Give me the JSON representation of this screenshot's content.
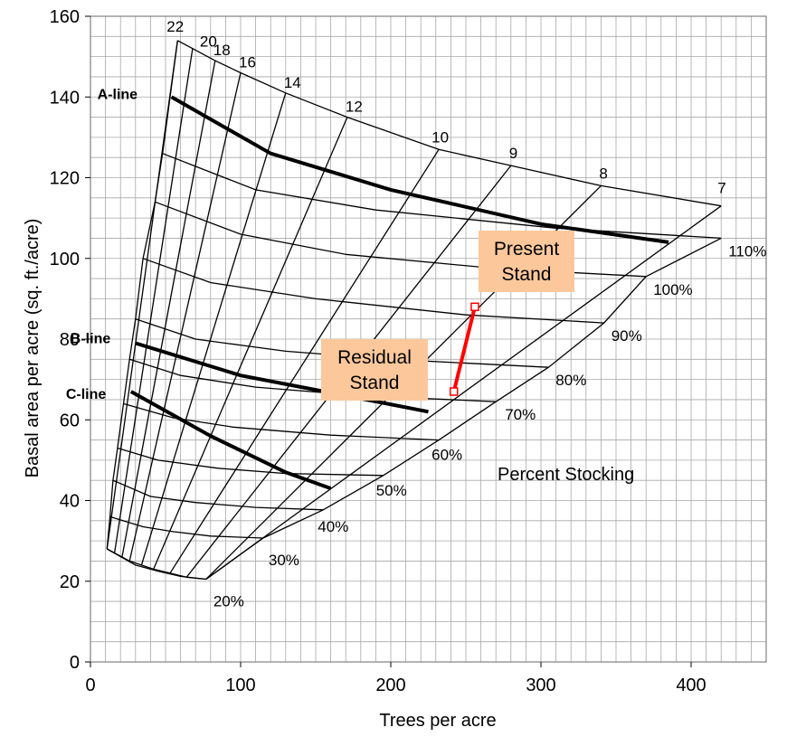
{
  "chart_data": {
    "type": "line",
    "xlabel": "Trees per acre",
    "ylabel": "Basal area per acre (sq. ft./acre)",
    "xlim": [
      0,
      450
    ],
    "ylim": [
      0,
      160
    ],
    "xticks": [
      "0",
      "100",
      "200",
      "300",
      "400"
    ],
    "yticks": [
      "0",
      "20",
      "40",
      "60",
      "80",
      "100",
      "120",
      "140",
      "160"
    ],
    "grid": true,
    "stocking_lines": [
      {
        "label": "20%",
        "points": [
          [
            11,
            28
          ],
          [
            30,
            24
          ],
          [
            45,
            22.5
          ],
          [
            60,
            21.2
          ],
          [
            77,
            20.5
          ]
        ]
      },
      {
        "label": "30%",
        "points": [
          [
            13,
            36
          ],
          [
            35,
            33.5
          ],
          [
            55,
            32.3
          ],
          [
            80,
            31.2
          ],
          [
            115,
            30.7
          ]
        ]
      },
      {
        "label": "40%",
        "points": [
          [
            15,
            45
          ],
          [
            40,
            41
          ],
          [
            70,
            39.5
          ],
          [
            110,
            38.3
          ],
          [
            155,
            37.7
          ]
        ]
      },
      {
        "label": "50%",
        "points": [
          [
            18,
            53
          ],
          [
            45,
            50
          ],
          [
            85,
            48
          ],
          [
            130,
            46.7
          ],
          [
            195,
            46.2
          ]
        ]
      },
      {
        "label": "60%",
        "points": [
          [
            22,
            64
          ],
          [
            55,
            60.5
          ],
          [
            95,
            58.2
          ],
          [
            160,
            56.2
          ],
          [
            232,
            55
          ]
        ]
      },
      {
        "label": "70%",
        "points": [
          [
            26,
            75
          ],
          [
            60,
            71
          ],
          [
            110,
            68.1
          ],
          [
            180,
            66
          ],
          [
            270,
            64.5
          ]
        ]
      },
      {
        "label": "80%",
        "points": [
          [
            30,
            85
          ],
          [
            70,
            80
          ],
          [
            130,
            77
          ],
          [
            200,
            75
          ],
          [
            305,
            73
          ]
        ]
      },
      {
        "label": "90%",
        "points": [
          [
            35,
            100
          ],
          [
            80,
            94
          ],
          [
            150,
            90
          ],
          [
            250,
            86
          ],
          [
            342,
            84
          ]
        ]
      },
      {
        "label": "100%",
        "points": [
          [
            43,
            114
          ],
          [
            100,
            106
          ],
          [
            170,
            101
          ],
          [
            270,
            97.5
          ],
          [
            370,
            95.5
          ]
        ]
      },
      {
        "label": "110%",
        "points": [
          [
            48,
            126
          ],
          [
            110,
            117
          ],
          [
            190,
            112
          ],
          [
            310,
            107.5
          ],
          [
            420,
            105
          ]
        ]
      }
    ],
    "diameter_lines": [
      {
        "label": "22",
        "points": [
          [
            11,
            28
          ],
          [
            58,
            154
          ]
        ]
      },
      {
        "label": "20",
        "points": [
          [
            16,
            27
          ],
          [
            68,
            152
          ]
        ]
      },
      {
        "label": "18",
        "points": [
          [
            21,
            26
          ],
          [
            83,
            149
          ]
        ]
      },
      {
        "label": "16",
        "points": [
          [
            26,
            25
          ],
          [
            100,
            146
          ]
        ]
      },
      {
        "label": "14",
        "points": [
          [
            34,
            24
          ],
          [
            130,
            141
          ]
        ]
      },
      {
        "label": "12",
        "points": [
          [
            42,
            23
          ],
          [
            171,
            135
          ]
        ]
      },
      {
        "label": "10",
        "points": [
          [
            53,
            22
          ],
          [
            232,
            127
          ]
        ]
      },
      {
        "label": "9",
        "points": [
          [
            64,
            21
          ],
          [
            280,
            123
          ]
        ]
      },
      {
        "label": "8",
        "points": [
          [
            77,
            20.5
          ],
          [
            340,
            118
          ]
        ]
      },
      {
        "label": "7",
        "points": [
          [
            77,
            20.5
          ],
          [
            420,
            113
          ]
        ]
      }
    ],
    "reference_lines": [
      {
        "label": "A-line",
        "points": [
          [
            54,
            140
          ],
          [
            120,
            126
          ],
          [
            200,
            117
          ],
          [
            300,
            108.5
          ],
          [
            385,
            104
          ]
        ]
      },
      {
        "label": "B-line",
        "points": [
          [
            30,
            79
          ],
          [
            100,
            71
          ],
          [
            170,
            66
          ],
          [
            225,
            62
          ]
        ]
      },
      {
        "label": "C-line",
        "points": [
          [
            27,
            67
          ],
          [
            80,
            56
          ],
          [
            130,
            47
          ],
          [
            160,
            43
          ]
        ]
      }
    ],
    "thinning": {
      "present": [
        256,
        88
      ],
      "residual": [
        242,
        67
      ]
    },
    "annotations": {
      "present_stand": "Present Stand",
      "residual_stand": "Residual Stand",
      "percent_stocking": "Percent Stocking"
    }
  }
}
